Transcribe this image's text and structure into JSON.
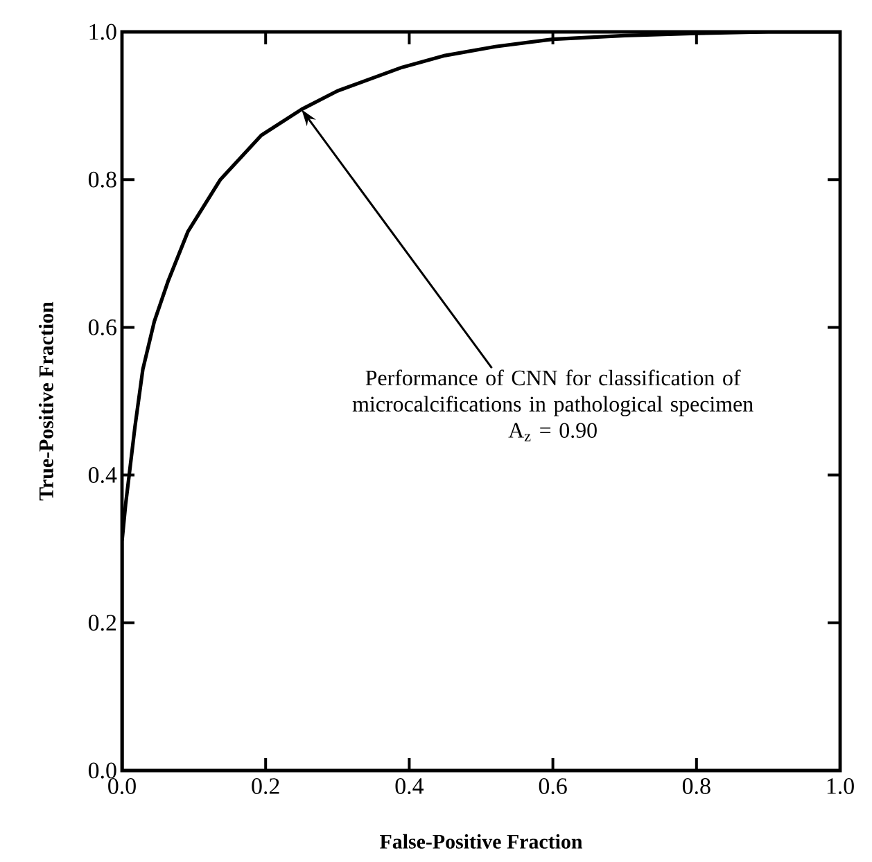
{
  "chart_data": {
    "type": "line",
    "xlabel": "False-Positive Fraction",
    "ylabel": "True-Positive Fraction",
    "xlim": [
      0,
      1
    ],
    "ylim": [
      0,
      1
    ],
    "xticks": [
      {
        "value": 0,
        "label": "0.0"
      },
      0.2,
      0.4,
      0.6,
      0.8,
      {
        "value": 1,
        "label": "1.0"
      }
    ],
    "yticks": [
      {
        "value": 0,
        "label": "0.0"
      },
      0.2,
      0.4,
      0.6,
      0.8,
      {
        "value": 1,
        "label": "1.0"
      }
    ],
    "series": [
      {
        "color": "#000000",
        "x": [
          0,
          0,
          0.005,
          0.01,
          0.018,
          0.029,
          0.045,
          0.064,
          0.092,
          0.137,
          0.194,
          0.25,
          0.3,
          0.39,
          0.45,
          0.52,
          0.6,
          0.7,
          0.8,
          0.9,
          1.0
        ],
        "values": [
          0,
          0.31,
          0.36,
          0.4,
          0.465,
          0.543,
          0.608,
          0.662,
          0.73,
          0.8,
          0.86,
          0.895,
          0.92,
          0.952,
          0.968,
          0.98,
          0.99,
          0.995,
          0.998,
          1.0,
          1.0
        ]
      }
    ],
    "marker": "none",
    "line_style": "solid",
    "annotations": [
      {
        "text": "Performance of CNN for classification of microcalcifications in pathological specimen",
        "x": 0.25,
        "y": 0.895
      },
      "A$_{z}$ = 0.90"
    ]
  }
}
